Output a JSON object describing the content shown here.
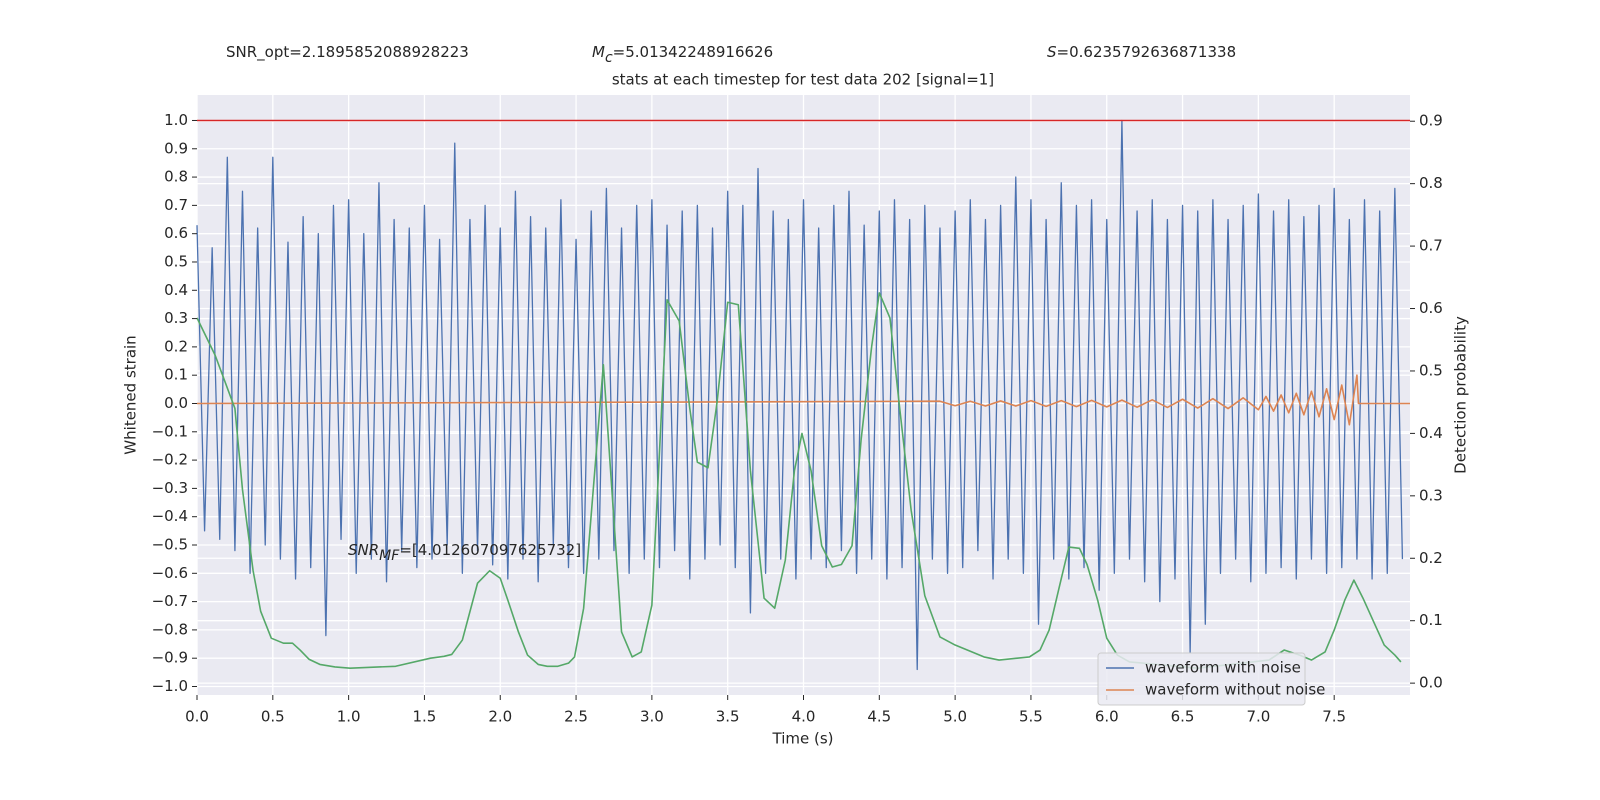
{
  "chart_data": {
    "type": "line",
    "title": "stats at each timestep for test data 202 [signal=1]",
    "annotations": [
      {
        "text": "SNR_opt=2.1895852088928223"
      },
      {
        "base": "M",
        "sub": "c",
        "text": "=5.01342248916626",
        "italic": true
      },
      {
        "base": "S",
        "text": "=0.6235792636871338",
        "italic": true
      },
      {
        "base": "SNR",
        "sub": "MF",
        "text": "=[4.012607097625732]",
        "italic": true
      }
    ],
    "xlabel": "Time (s)",
    "ylabel": "Whitened strain",
    "y2label": "Detection probability",
    "xlim": [
      0,
      8
    ],
    "ylim": [
      -1.03,
      1.09
    ],
    "y2lim": [
      -0.019,
      0.942
    ],
    "xticks": [
      {
        "value": 0,
        "label": "0.0"
      },
      {
        "value": 0.5,
        "label": "0.5"
      },
      {
        "value": 1,
        "label": "1.0"
      },
      {
        "value": 1.5,
        "label": "1.5"
      },
      {
        "value": 2,
        "label": "2.0"
      },
      {
        "value": 2.5,
        "label": "2.5"
      },
      {
        "value": 3,
        "label": "3.0"
      },
      {
        "value": 3.5,
        "label": "3.5"
      },
      {
        "value": 4,
        "label": "4.0"
      },
      {
        "value": 4.5,
        "label": "4.5"
      },
      {
        "value": 5,
        "label": "5.0"
      },
      {
        "value": 5.5,
        "label": "5.5"
      },
      {
        "value": 6,
        "label": "6.0"
      },
      {
        "value": 6.5,
        "label": "6.5"
      },
      {
        "value": 7,
        "label": "7.0"
      },
      {
        "value": 7.5,
        "label": "7.5"
      }
    ],
    "yticks": [
      {
        "value": -1,
        "label": "−1.0"
      },
      {
        "value": -0.9,
        "label": "−0.9"
      },
      {
        "value": -0.8,
        "label": "−0.8"
      },
      {
        "value": -0.7,
        "label": "−0.7"
      },
      {
        "value": -0.6,
        "label": "−0.6"
      },
      {
        "value": -0.5,
        "label": "−0.5"
      },
      {
        "value": -0.4,
        "label": "−0.4"
      },
      {
        "value": -0.3,
        "label": "−0.3"
      },
      {
        "value": -0.2,
        "label": "−0.2"
      },
      {
        "value": -0.1,
        "label": "−0.1"
      },
      {
        "value": 0,
        "label": "0.0"
      },
      {
        "value": 0.1,
        "label": "0.1"
      },
      {
        "value": 0.2,
        "label": "0.2"
      },
      {
        "value": 0.3,
        "label": "0.3"
      },
      {
        "value": 0.4,
        "label": "0.4"
      },
      {
        "value": 0.5,
        "label": "0.5"
      },
      {
        "value": 0.6,
        "label": "0.6"
      },
      {
        "value": 0.7,
        "label": "0.7"
      },
      {
        "value": 0.8,
        "label": "0.8"
      },
      {
        "value": 0.9,
        "label": "0.9"
      },
      {
        "value": 1,
        "label": "1.0"
      }
    ],
    "y2ticks": [
      {
        "value": 0,
        "label": "0.0"
      },
      0.1,
      0.2,
      0.3,
      0.4,
      0.5,
      0.6,
      0.7,
      0.8,
      0.9
    ],
    "grid": true,
    "legend": "lower right",
    "reference_line": {
      "y": 1.0,
      "color": "#d62728"
    },
    "series": [
      {
        "name": "waveform with noise",
        "color": "#4c72b0",
        "x": [
          0,
          0.05,
          0.1,
          0.15,
          0.2,
          0.25,
          0.3,
          0.35,
          0.4,
          0.45,
          0.5,
          0.55,
          0.6,
          0.65,
          0.7,
          0.75,
          0.8,
          0.85,
          0.9,
          0.95,
          1,
          1.05,
          1.1,
          1.15,
          1.2,
          1.25,
          1.3,
          1.35,
          1.4,
          1.45,
          1.5,
          1.55,
          1.6,
          1.65,
          1.7,
          1.75,
          1.8,
          1.85,
          1.9,
          1.95,
          2,
          2.05,
          2.1,
          2.15,
          2.2,
          2.25,
          2.3,
          2.35,
          2.4,
          2.45,
          2.5,
          2.55,
          2.6,
          2.65,
          2.7,
          2.75,
          2.8,
          2.85,
          2.9,
          2.95,
          3,
          3.05,
          3.1,
          3.15,
          3.2,
          3.25,
          3.3,
          3.35,
          3.4,
          3.45,
          3.5,
          3.55,
          3.6,
          3.65,
          3.7,
          3.75,
          3.8,
          3.85,
          3.9,
          3.95,
          4,
          4.05,
          4.1,
          4.15,
          4.2,
          4.25,
          4.3,
          4.35,
          4.4,
          4.45,
          4.5,
          4.55,
          4.6,
          4.65,
          4.7,
          4.75,
          4.8,
          4.85,
          4.9,
          4.95,
          5,
          5.05,
          5.1,
          5.15,
          5.2,
          5.25,
          5.3,
          5.35,
          5.4,
          5.45,
          5.5,
          5.55,
          5.6,
          5.65,
          5.7,
          5.75,
          5.8,
          5.85,
          5.9,
          5.95,
          6,
          6.05,
          6.1,
          6.15,
          6.2,
          6.25,
          6.3,
          6.35,
          6.4,
          6.45,
          6.5,
          6.55,
          6.6,
          6.65,
          6.7,
          6.75,
          6.8,
          6.85,
          6.9,
          6.95,
          7,
          7.05,
          7.1,
          7.15,
          7.2,
          7.25,
          7.3,
          7.35,
          7.4,
          7.45,
          7.5,
          7.55,
          7.6,
          7.65,
          7.7,
          7.75,
          7.8,
          7.85,
          7.9,
          7.95
        ],
        "values": [
          0.63,
          -0.45,
          0.55,
          -0.48,
          0.87,
          -0.52,
          0.75,
          -0.6,
          0.62,
          -0.5,
          0.87,
          -0.55,
          0.57,
          -0.62,
          0.66,
          -0.58,
          0.6,
          -0.82,
          0.7,
          -0.48,
          0.72,
          -0.6,
          0.6,
          -0.55,
          0.78,
          -0.63,
          0.65,
          -0.52,
          0.62,
          -0.58,
          0.7,
          -0.55,
          0.58,
          -0.5,
          0.92,
          -0.6,
          0.65,
          -0.52,
          0.7,
          -0.57,
          0.62,
          -0.62,
          0.75,
          -0.55,
          0.66,
          -0.63,
          0.62,
          -0.5,
          0.72,
          -0.58,
          0.58,
          -0.6,
          0.68,
          -0.55,
          0.76,
          -0.52,
          0.62,
          -0.6,
          0.7,
          -0.55,
          0.72,
          -0.58,
          0.63,
          -0.52,
          0.68,
          -0.62,
          0.7,
          -0.55,
          0.62,
          -0.5,
          0.75,
          -0.58,
          0.7,
          -0.74,
          0.83,
          -0.6,
          0.68,
          -0.55,
          0.65,
          -0.62,
          0.72,
          -0.55,
          0.62,
          -0.58,
          0.7,
          -0.52,
          0.75,
          -0.6,
          0.63,
          -0.55,
          0.68,
          -0.62,
          0.72,
          -0.58,
          0.65,
          -0.94,
          0.7,
          -0.55,
          0.62,
          -0.6,
          0.68,
          -0.58,
          0.72,
          -0.52,
          0.65,
          -0.62,
          0.7,
          -0.55,
          0.8,
          -0.6,
          0.72,
          -0.78,
          0.65,
          -0.55,
          0.78,
          -0.62,
          0.7,
          -0.58,
          0.72,
          -0.66,
          0.65,
          -0.6,
          1.0,
          -0.55,
          0.68,
          -0.63,
          0.72,
          -0.7,
          0.65,
          -0.62,
          0.7,
          -0.88,
          0.68,
          -0.78,
          0.72,
          -0.6,
          0.65,
          -0.55,
          0.7,
          -0.63,
          0.74,
          -0.6,
          0.68,
          -0.58,
          0.72,
          -0.62,
          0.66,
          -0.55,
          0.7,
          -0.6,
          0.76,
          -0.58,
          0.65,
          -0.55,
          0.72,
          -0.62,
          0.68,
          -0.6,
          0.76,
          -0.55
        ]
      },
      {
        "name": "waveform without noise",
        "color": "#dd8452",
        "x": [
          0,
          4.9,
          5,
          5.1,
          5.2,
          5.3,
          5.4,
          5.5,
          5.6,
          5.7,
          5.8,
          5.9,
          6,
          6.1,
          6.2,
          6.3,
          6.4,
          6.5,
          6.6,
          6.7,
          6.8,
          6.9,
          7,
          7.05,
          7.1,
          7.15,
          7.2,
          7.25,
          7.3,
          7.35,
          7.4,
          7.45,
          7.5,
          7.55,
          7.6,
          7.65,
          7.66,
          8
        ],
        "values": [
          0,
          0.008,
          -0.008,
          0.008,
          -0.009,
          0.009,
          -0.009,
          0.01,
          -0.01,
          0.01,
          -0.011,
          0.011,
          -0.012,
          0.012,
          -0.013,
          0.013,
          -0.014,
          0.015,
          -0.016,
          0.017,
          -0.018,
          0.02,
          -0.022,
          0.025,
          -0.027,
          0.03,
          -0.033,
          0.036,
          -0.04,
          0.043,
          -0.047,
          0.052,
          -0.057,
          0.065,
          -0.075,
          0.1,
          0,
          0
        ]
      },
      {
        "color": "#55a868",
        "axis": "y2",
        "x": [
          0,
          0.12,
          0.25,
          0.3,
          0.37,
          0.42,
          0.49,
          0.57,
          0.63,
          0.68,
          0.74,
          0.81,
          0.91,
          1.01,
          1.31,
          1.54,
          1.63,
          1.68,
          1.75,
          1.85,
          1.93,
          2.0,
          2.05,
          2.12,
          2.18,
          2.25,
          2.31,
          2.38,
          2.45,
          2.49,
          2.55,
          2.68,
          2.8,
          2.87,
          2.93,
          3.0,
          3.1,
          3.18,
          3.25,
          3.3,
          3.37,
          3.43,
          3.5,
          3.57,
          3.65,
          3.74,
          3.81,
          3.88,
          3.94,
          3.99,
          4.05,
          4.12,
          4.19,
          4.25,
          4.32,
          4.38,
          4.45,
          4.5,
          4.57,
          4.63,
          4.71,
          4.8,
          4.9,
          5.0,
          5.19,
          5.29,
          5.49,
          5.56,
          5.62,
          5.69,
          5.75,
          5.82,
          5.87,
          5.94,
          6.0,
          6.07,
          6.15,
          6.6,
          7.07,
          7.17,
          7.27,
          7.35,
          7.44,
          7.5,
          7.57,
          7.63,
          7.69,
          7.77,
          7.83,
          7.9,
          7.94
        ],
        "values": [
          0.585,
          0.525,
          0.44,
          0.31,
          0.18,
          0.115,
          0.072,
          0.064,
          0.064,
          0.053,
          0.038,
          0.03,
          0.026,
          0.024,
          0.027,
          0.04,
          0.043,
          0.046,
          0.069,
          0.16,
          0.18,
          0.168,
          0.133,
          0.082,
          0.045,
          0.03,
          0.027,
          0.027,
          0.032,
          0.042,
          0.12,
          0.51,
          0.082,
          0.042,
          0.05,
          0.125,
          0.614,
          0.58,
          0.44,
          0.354,
          0.345,
          0.45,
          0.61,
          0.606,
          0.34,
          0.136,
          0.12,
          0.197,
          0.34,
          0.4,
          0.34,
          0.22,
          0.186,
          0.19,
          0.22,
          0.39,
          0.54,
          0.625,
          0.585,
          0.45,
          0.277,
          0.14,
          0.074,
          0.061,
          0.042,
          0.037,
          0.042,
          0.053,
          0.085,
          0.157,
          0.218,
          0.216,
          0.19,
          0.133,
          0.072,
          0.045,
          0.034,
          0.024,
          0.037,
          0.053,
          0.045,
          0.037,
          0.05,
          0.085,
          0.133,
          0.165,
          0.136,
          0.093,
          0.061,
          0.045,
          0.034
        ]
      }
    ]
  }
}
